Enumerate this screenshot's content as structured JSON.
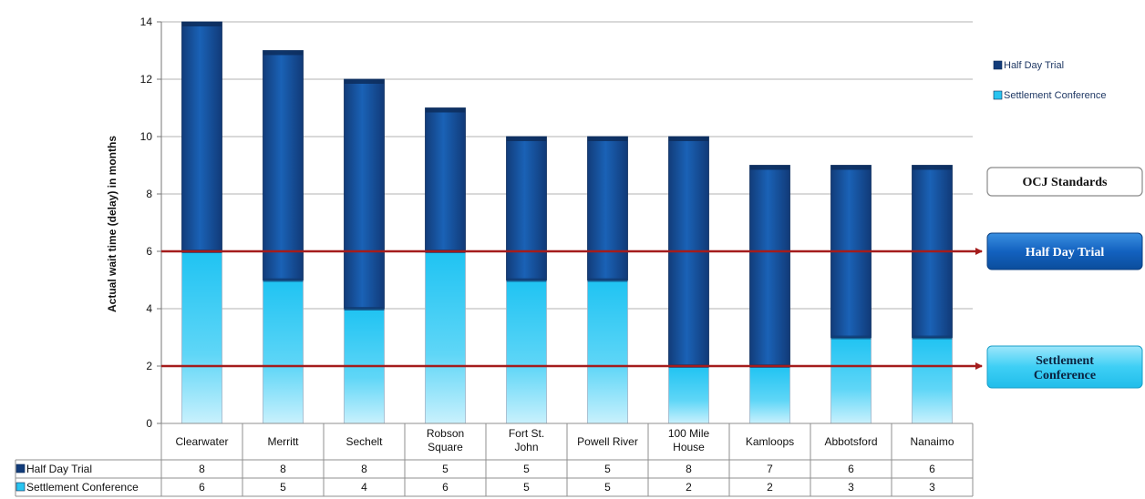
{
  "chart_data": {
    "type": "bar",
    "stacked": true,
    "ylabel": "Actual wait time (delay) in months",
    "ylim": [
      0,
      14
    ],
    "yticks": [
      0,
      2,
      4,
      6,
      8,
      10,
      12,
      14
    ],
    "categories": [
      "Clearwater",
      "Merritt",
      "Sechelt",
      "Robson Square",
      "Fort St. John",
      "Powell River",
      "100 Mile House",
      "Kamloops",
      "Abbotsford",
      "Nanaimo"
    ],
    "series": [
      {
        "name": "Settlement Conference",
        "values": [
          6,
          5,
          4,
          6,
          5,
          5,
          2,
          2,
          3,
          3
        ],
        "color": "#29c4f0"
      },
      {
        "name": "Half Day Trial",
        "values": [
          8,
          8,
          8,
          5,
          5,
          5,
          8,
          7,
          6,
          6
        ],
        "color": "#1560b0"
      }
    ],
    "legend": {
      "position": "top-right",
      "items": [
        "Half Day Trial",
        "Settlement Conference"
      ]
    },
    "data_table": {
      "rows": [
        "Half Day Trial",
        "Settlement Conference"
      ]
    },
    "reference_lines": [
      {
        "value": 6,
        "label": "Half Day Trial",
        "color": "#a41c1c"
      },
      {
        "value": 2,
        "label": "Settlement Conference",
        "color": "#a41c1c"
      }
    ],
    "standards_box": {
      "title": "OCJ Standards"
    }
  }
}
